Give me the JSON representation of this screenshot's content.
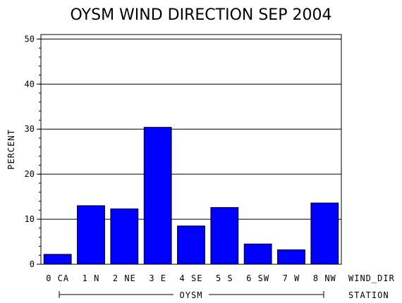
{
  "chart_data": {
    "type": "bar",
    "title": "OYSM WIND DIRECTION SEP 2004",
    "ylabel": "PERCENT",
    "xlabel": "WIND_DIR",
    "group_axis_label": "STATION",
    "group": "OYSM",
    "categories": [
      "0 CA",
      "1 N",
      "2 NE",
      "3 E",
      "4 SE",
      "5 S",
      "6 SW",
      "7 W",
      "8 NW"
    ],
    "values": [
      2.2,
      13.0,
      12.3,
      30.4,
      8.5,
      12.6,
      4.5,
      3.2,
      13.6
    ],
    "ylim": [
      0,
      51
    ],
    "yticks": [
      0,
      10,
      20,
      30,
      40,
      50
    ],
    "grid": true,
    "bar_color": "#0000ff"
  }
}
